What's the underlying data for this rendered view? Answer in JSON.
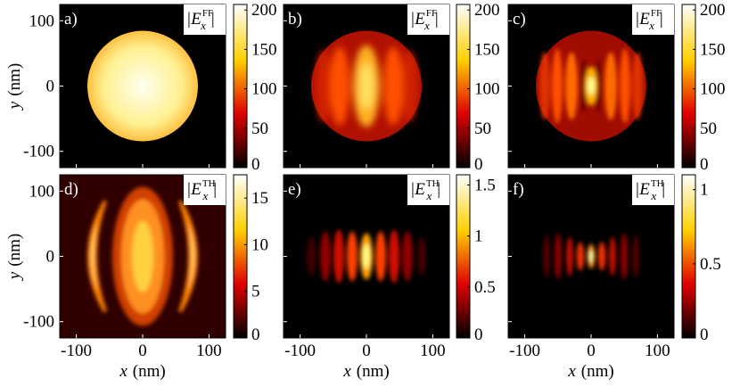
{
  "chart_data": [
    {
      "type": "heatmap",
      "panel_label": "a)",
      "field_label": {
        "open": "|E",
        "sub": "x",
        "sup": "FF",
        "close": "|"
      },
      "y_label": {
        "var": "y",
        "unit": "(nm)"
      },
      "xlim": [
        -125,
        125
      ],
      "ylim": [
        -125,
        125
      ],
      "xticks": [
        -100,
        0,
        100
      ],
      "yticks": [
        -100,
        0,
        100
      ],
      "x_tick_labels": false,
      "y_tick_labels": true,
      "colorbar_lim": [
        0,
        207
      ],
      "colorbar_ticks": [
        0,
        50,
        100,
        150,
        200
      ]
    },
    {
      "type": "heatmap",
      "panel_label": "b)",
      "field_label": {
        "open": "|E",
        "sub": "x",
        "sup": "FF",
        "close": "|"
      },
      "xlim": [
        -125,
        125
      ],
      "ylim": [
        -125,
        125
      ],
      "xticks": [
        -100,
        0,
        100
      ],
      "yticks": [
        -100,
        0,
        100
      ],
      "x_tick_labels": false,
      "y_tick_labels": false,
      "colorbar_lim": [
        0,
        207
      ],
      "colorbar_ticks": [
        0,
        50,
        100,
        150,
        200
      ]
    },
    {
      "type": "heatmap",
      "panel_label": "c)",
      "field_label": {
        "open": "|E",
        "sub": "x",
        "sup": "FF",
        "close": "|"
      },
      "xlim": [
        -125,
        125
      ],
      "ylim": [
        -125,
        125
      ],
      "xticks": [
        -100,
        0,
        100
      ],
      "yticks": [
        -100,
        0,
        100
      ],
      "x_tick_labels": false,
      "y_tick_labels": false,
      "colorbar_lim": [
        0,
        207
      ],
      "colorbar_ticks": [
        0,
        50,
        100,
        150,
        200
      ]
    },
    {
      "type": "heatmap",
      "panel_label": "d)",
      "field_label": {
        "open": "|E",
        "sub": "x",
        "sup": "TH",
        "close": "|"
      },
      "x_label": {
        "var": "x",
        "unit": "(nm)"
      },
      "y_label": {
        "var": "y",
        "unit": "(nm)"
      },
      "xlim": [
        -125,
        125
      ],
      "ylim": [
        -125,
        125
      ],
      "xticks": [
        -100,
        0,
        100
      ],
      "yticks": [
        -100,
        0,
        100
      ],
      "x_tick_labels": true,
      "y_tick_labels": true,
      "colorbar_lim": [
        0,
        17.5
      ],
      "colorbar_ticks": [
        0,
        5,
        10,
        15
      ]
    },
    {
      "type": "heatmap",
      "panel_label": "e)",
      "field_label": {
        "open": "|E",
        "sub": "x",
        "sup": "TH",
        "close": "|"
      },
      "x_label": {
        "var": "x",
        "unit": "(nm)"
      },
      "xlim": [
        -125,
        125
      ],
      "ylim": [
        -125,
        125
      ],
      "xticks": [
        -100,
        0,
        100
      ],
      "yticks": [
        -100,
        0,
        100
      ],
      "x_tick_labels": true,
      "y_tick_labels": false,
      "colorbar_lim": [
        0,
        1.6
      ],
      "colorbar_ticks": [
        0,
        0.5,
        1,
        1.5
      ]
    },
    {
      "type": "heatmap",
      "panel_label": "f)",
      "field_label": {
        "open": "|E",
        "sub": "x",
        "sup": "TH",
        "close": "|"
      },
      "x_label": {
        "var": "x",
        "unit": "(nm)"
      },
      "xlim": [
        -125,
        125
      ],
      "ylim": [
        -125,
        125
      ],
      "xticks": [
        -100,
        0,
        100
      ],
      "yticks": [
        -100,
        0,
        100
      ],
      "x_tick_labels": true,
      "y_tick_labels": false,
      "colorbar_lim": [
        0,
        1.1
      ],
      "colorbar_ticks": [
        0,
        0.5,
        1
      ]
    }
  ]
}
